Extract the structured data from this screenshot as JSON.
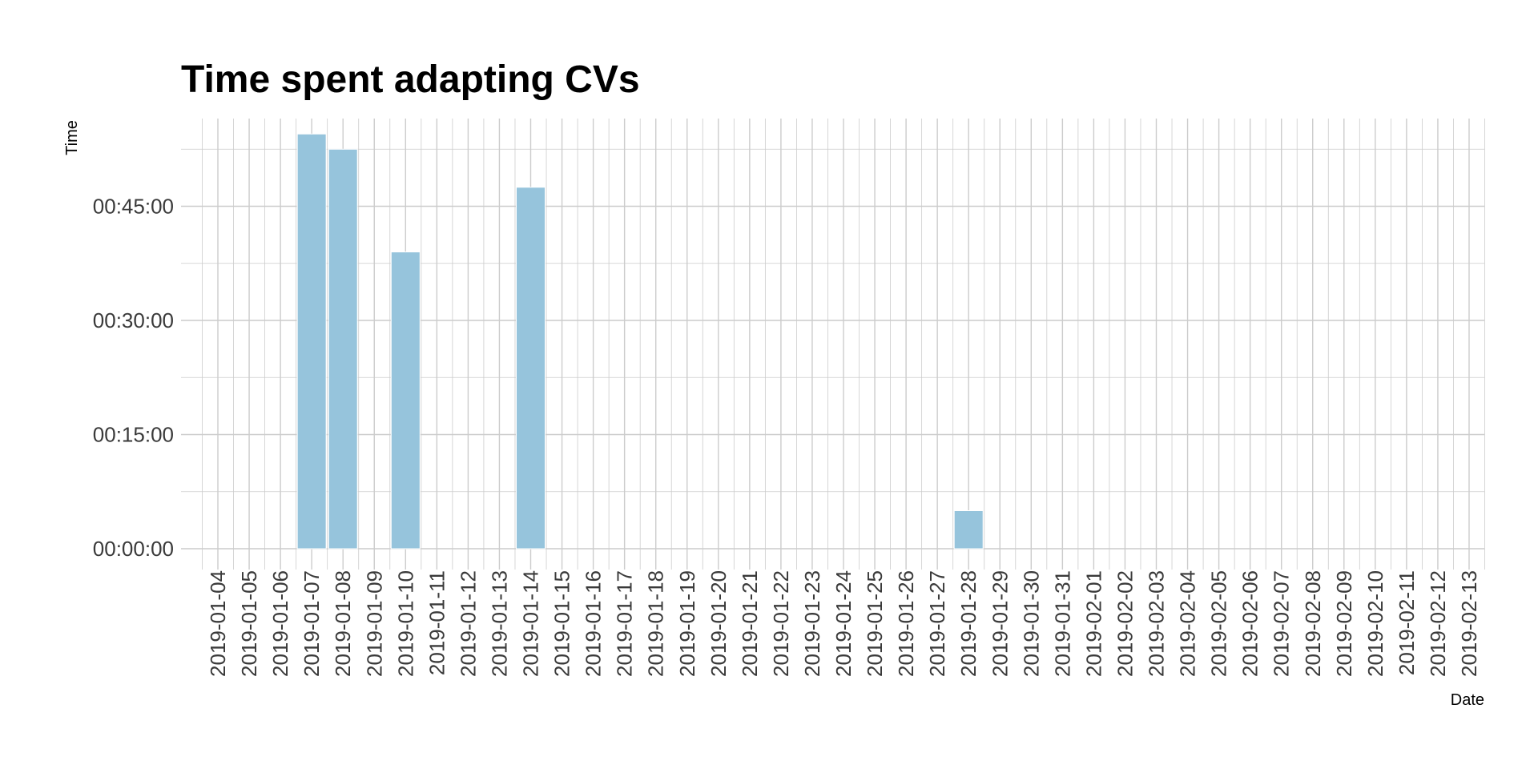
{
  "chart_data": {
    "type": "bar",
    "title": "Time spent adapting CVs",
    "subtitle": "",
    "xlabel": "Date",
    "ylabel": "Time",
    "grid": true,
    "legend": "none",
    "bar_color": "#96c4dc",
    "grid_color": "#cccccc",
    "ylim_seconds": [
      0,
      3420
    ],
    "y_ticks": [
      {
        "label": "00:00:00",
        "seconds": 0
      },
      {
        "label": "00:15:00",
        "seconds": 900
      },
      {
        "label": "00:30:00",
        "seconds": 1800
      },
      {
        "label": "00:45:00",
        "seconds": 2700
      }
    ],
    "categories": [
      "2019-01-04",
      "2019-01-05",
      "2019-01-06",
      "2019-01-07",
      "2019-01-08",
      "2019-01-09",
      "2019-01-10",
      "2019-01-11",
      "2019-01-12",
      "2019-01-13",
      "2019-01-14",
      "2019-01-15",
      "2019-01-16",
      "2019-01-17",
      "2019-01-18",
      "2019-01-19",
      "2019-01-20",
      "2019-01-21",
      "2019-01-22",
      "2019-01-23",
      "2019-01-24",
      "2019-01-25",
      "2019-01-26",
      "2019-01-27",
      "2019-01-28",
      "2019-01-29",
      "2019-01-30",
      "2019-01-31",
      "2019-02-01",
      "2019-02-02",
      "2019-02-03",
      "2019-02-04",
      "2019-02-05",
      "2019-02-06",
      "2019-02-07",
      "2019-02-08",
      "2019-02-09",
      "2019-02-10",
      "2019-02-11",
      "2019-02-12",
      "2019-02-13"
    ],
    "values": [
      {
        "date": "2019-01-07",
        "time": "00:54:30",
        "seconds": 3270
      },
      {
        "date": "2019-01-08",
        "time": "00:52:30",
        "seconds": 3150
      },
      {
        "date": "2019-01-10",
        "time": "00:39:00",
        "seconds": 2340
      },
      {
        "date": "2019-01-14",
        "time": "00:47:30",
        "seconds": 2850
      },
      {
        "date": "2019-01-28",
        "time": "00:05:00",
        "seconds": 300
      }
    ]
  }
}
